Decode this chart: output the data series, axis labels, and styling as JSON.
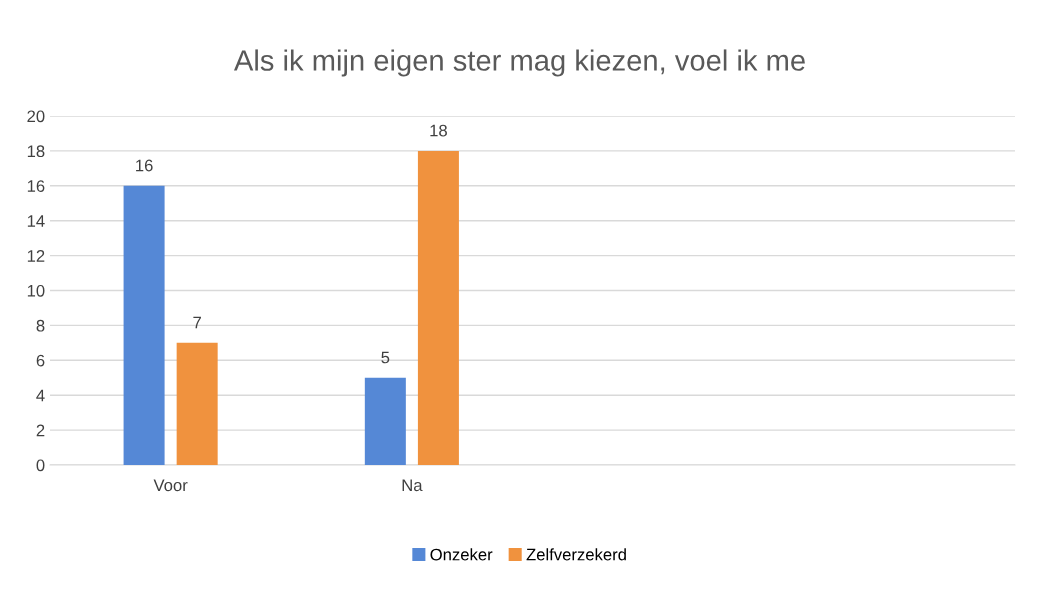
{
  "chart_data": {
    "type": "bar",
    "title": "Als ik mijn eigen ster mag kiezen, voel ik me",
    "categories": [
      "Voor",
      "Na",
      null,
      null
    ],
    "series": [
      {
        "name": "Onzeker",
        "color": "#5588d6",
        "values": [
          16,
          5,
          null,
          null
        ]
      },
      {
        "name": "Zelfverzekerd",
        "color": "#f0923e",
        "values": [
          7,
          18,
          null,
          null
        ]
      }
    ],
    "ylim": [
      0,
      20
    ],
    "yticks": [
      0,
      2,
      4,
      6,
      8,
      10,
      12,
      14,
      16,
      18,
      20
    ],
    "grid": "y",
    "legend": "bottom",
    "data_labels": true
  }
}
